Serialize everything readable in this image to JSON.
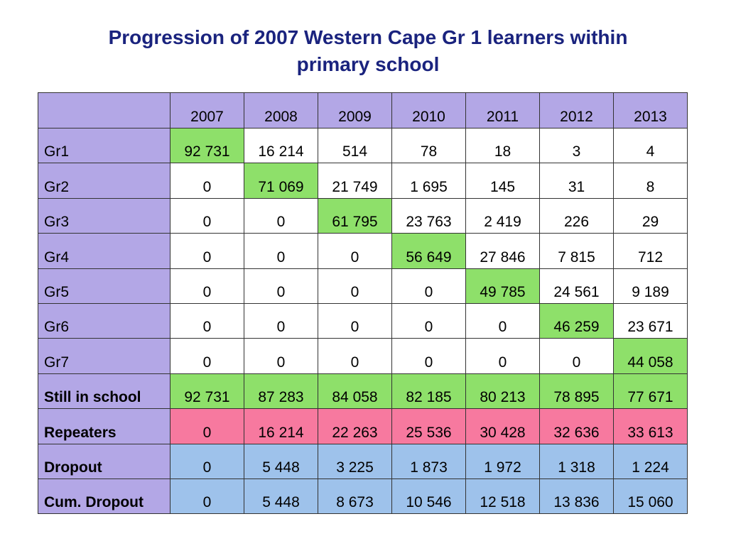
{
  "chart_data": {
    "type": "table",
    "title": "Progression of 2007 Western Cape Gr 1 learners within primary school",
    "title_lines": [
      "Progression of 2007 Western Cape Gr 1 learners within",
      "primary school"
    ],
    "columns": [
      "2007",
      "2008",
      "2009",
      "2010",
      "2011",
      "2012",
      "2013"
    ],
    "grade_rows": [
      {
        "label": "Gr1",
        "values": [
          "92 731",
          "16 214",
          "514",
          "78",
          "18",
          "3",
          "4"
        ],
        "highlight_index": 0
      },
      {
        "label": "Gr2",
        "values": [
          "0",
          "71 069",
          "21 749",
          "1 695",
          "145",
          "31",
          "8"
        ],
        "highlight_index": 1
      },
      {
        "label": "Gr3",
        "values": [
          "0",
          "0",
          "61 795",
          "23 763",
          "2 419",
          "226",
          "29"
        ],
        "highlight_index": 2
      },
      {
        "label": "Gr4",
        "values": [
          "0",
          "0",
          "0",
          "56 649",
          "27 846",
          "7 815",
          "712"
        ],
        "highlight_index": 3
      },
      {
        "label": "Gr5",
        "values": [
          "0",
          "0",
          "0",
          "0",
          "49 785",
          "24 561",
          "9 189"
        ],
        "highlight_index": 4
      },
      {
        "label": "Gr6",
        "values": [
          "0",
          "0",
          "0",
          "0",
          "0",
          "46 259",
          "23 671"
        ],
        "highlight_index": 5
      },
      {
        "label": "Gr7",
        "values": [
          "0",
          "0",
          "0",
          "0",
          "0",
          "0",
          "44 058"
        ],
        "highlight_index": 6
      }
    ],
    "summary_rows": [
      {
        "label": "Still in school",
        "values": [
          "92 731",
          "87 283",
          "84 058",
          "82 185",
          "80 213",
          "78 895",
          "77 671"
        ],
        "fill": "#8ee06a"
      },
      {
        "label": "Repeaters",
        "values": [
          "0",
          "16 214",
          "22 263",
          "25 536",
          "30 428",
          "32 636",
          "33 613"
        ],
        "fill": "#f7799f"
      },
      {
        "label": "Dropout",
        "values": [
          "0",
          "5 448",
          "3 225",
          "1 873",
          "1 972",
          "1 318",
          "1 224"
        ],
        "fill": "#9ec2eb"
      },
      {
        "label": "Cum. Dropout",
        "values": [
          "0",
          "5 448",
          "8 673",
          "10 546",
          "12 518",
          "13 836",
          "15 060"
        ],
        "fill": "#9ec2eb"
      }
    ],
    "colors": {
      "title": "#1a237e",
      "header": "#b3a7e6",
      "diagonal": "#8ee06a",
      "still_in_school": "#8ee06a",
      "repeaters": "#f7799f",
      "dropout": "#9ec2eb"
    }
  }
}
